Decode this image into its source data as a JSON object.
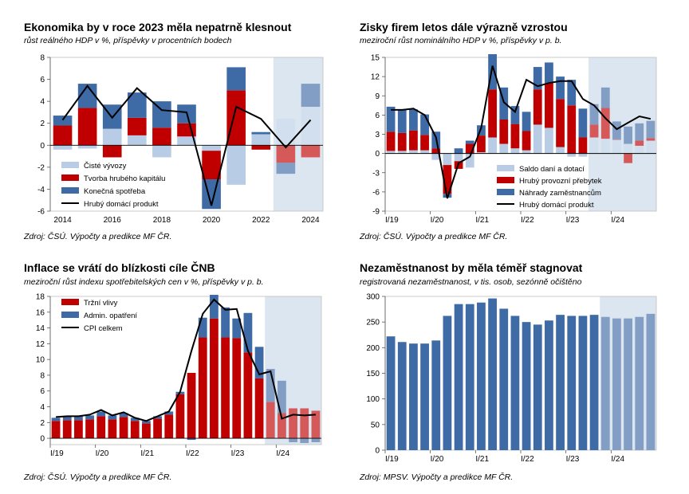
{
  "colors": {
    "forecast_bg": "#dce6f1",
    "dark_blue": "#3e6aa5",
    "light_blue": "#b8cde5",
    "red": "#c00000",
    "line": "#000000"
  },
  "charts": [
    {
      "title": "Ekonomika by v roce 2023 měla nepatrně klesnout",
      "subtitle": "růst reálného HDP v %, příspěvky v procentních bodech",
      "source": "Zdroj: ČSÚ. Výpočty a predikce MF ČR.",
      "chart_data": {
        "type": "bar",
        "stacked": true,
        "categories": [
          "2014",
          "2015",
          "2016",
          "2017",
          "2018",
          "2019",
          "2020",
          "2021",
          "2022",
          "2023",
          "2024"
        ],
        "x_tick_labels": [
          "2014",
          "2016",
          "2018",
          "2020",
          "2022",
          "2024"
        ],
        "ylim": [
          -6,
          8
        ],
        "yticks": [
          -6,
          -4,
          -2,
          0,
          2,
          4,
          6,
          8
        ],
        "forecast_from_index": 9,
        "legend_position": "bottom-left",
        "series": [
          {
            "name": "Čisté vývozy",
            "color": "#b8cde5",
            "values": [
              -0.4,
              -0.3,
              1.5,
              0.9,
              -1.1,
              0.8,
              -0.5,
              -3.6,
              1.0,
              2.4,
              3.5
            ]
          },
          {
            "name": "Tvorba hrubého kapitálu",
            "color": "#c00000",
            "values": [
              1.8,
              3.4,
              -1.1,
              1.6,
              1.6,
              1.2,
              -2.6,
              5.0,
              -0.4,
              -1.6,
              -1.1
            ]
          },
          {
            "name": "Konečná spotřeba",
            "color": "#3e6aa5",
            "values": [
              0.9,
              2.2,
              2.2,
              2.3,
              2.4,
              1.7,
              -2.7,
              2.1,
              0.2,
              -1.0,
              2.1
            ]
          }
        ],
        "line": {
          "name": "Hrubý domácí produkt",
          "values": [
            2.3,
            5.4,
            2.5,
            5.2,
            3.2,
            3.0,
            -5.5,
            3.5,
            2.4,
            -0.2,
            2.3
          ]
        }
      }
    },
    {
      "title": "Zisky firem letos dále výrazně vzrostou",
      "subtitle": "meziroční růst nominálního HDP v %, příspěvky v p. b.",
      "source": "Zdroj: ČSÚ. Výpočty a predikce MF ČR.",
      "chart_data": {
        "type": "bar",
        "stacked": true,
        "categories": [
          "I/19",
          "II/19",
          "III/19",
          "IV/19",
          "I/20",
          "II/20",
          "III/20",
          "IV/20",
          "I/21",
          "II/21",
          "III/21",
          "IV/21",
          "I/22",
          "II/22",
          "III/22",
          "IV/22",
          "I/23",
          "II/23",
          "III/23",
          "IV/23",
          "I/24",
          "II/24",
          "III/24",
          "IV/24"
        ],
        "x_tick_labels": [
          "I/19",
          "I/20",
          "I/21",
          "I/22",
          "I/23",
          "I/24"
        ],
        "ylim": [
          -9,
          15
        ],
        "yticks": [
          -9,
          -6,
          -3,
          0,
          3,
          6,
          9,
          12,
          15
        ],
        "forecast_from_index": 18,
        "legend_position": "bottom-right",
        "series": [
          {
            "name": "Saldo daní a dotací",
            "color": "#b8cde5",
            "values": [
              0.4,
              0.4,
              0.5,
              0.5,
              -1.0,
              -1.8,
              -1.2,
              -2.2,
              0.2,
              2.5,
              1.5,
              0.8,
              0.5,
              4.5,
              4.0,
              1.0,
              -0.5,
              -0.5,
              2.5,
              2.3,
              2.2,
              1.5,
              1.2,
              2.0
            ]
          },
          {
            "name": "Hrubý provozní přebytek",
            "color": "#c00000",
            "values": [
              3.0,
              2.8,
              3.1,
              2.4,
              0.8,
              -4.5,
              -1.2,
              1.5,
              2.6,
              7.5,
              3.8,
              3.8,
              3.0,
              5.5,
              7.0,
              7.5,
              7.5,
              2.5,
              2.0,
              4.8,
              0.0,
              -1.5,
              0.8,
              0.4
            ]
          },
          {
            "name": "Náhrady zaměstnancům",
            "color": "#3e6aa5",
            "values": [
              3.9,
              3.6,
              3.3,
              3.2,
              2.6,
              -0.6,
              0.8,
              0.5,
              1.6,
              5.5,
              5.0,
              2.8,
              3.0,
              3.5,
              3.2,
              3.5,
              4.0,
              4.5,
              3.2,
              3.2,
              2.8,
              2.7,
              2.7,
              2.7
            ]
          }
        ],
        "line": {
          "name": "Hrubý domácí produkt",
          "values": [
            6.8,
            6.8,
            7.0,
            6.0,
            2.5,
            -7.0,
            -1.5,
            -0.5,
            4.0,
            13.7,
            8.0,
            6.5,
            11.5,
            10.5,
            11.0,
            11.3,
            11.3,
            8.5,
            7.5,
            5.5,
            3.8,
            4.8,
            5.8,
            5.4
          ]
        }
      }
    },
    {
      "title": "Inflace se vrátí do blízkosti cíle ČNB",
      "subtitle": "meziroční růst indexu spotřebitelských cen v %, příspěvky v p. b.",
      "source": "Zdroj: ČSÚ. Výpočty a predikce MF ČR.",
      "chart_data": {
        "type": "bar",
        "stacked": true,
        "categories": [
          "I/19",
          "II/19",
          "III/19",
          "IV/19",
          "I/20",
          "II/20",
          "III/20",
          "IV/20",
          "I/21",
          "II/21",
          "III/21",
          "IV/21",
          "I/22",
          "II/22",
          "III/22",
          "IV/22",
          "I/23",
          "II/23",
          "III/23",
          "IV/23",
          "I/24",
          "II/24",
          "III/24",
          "IV/24"
        ],
        "x_tick_labels": [
          "I/19",
          "I/20",
          "I/21",
          "I/22",
          "I/23",
          "I/24"
        ],
        "ylim": [
          0,
          18
        ],
        "ymin_display": -0.8,
        "yticks": [
          0,
          2,
          4,
          6,
          8,
          10,
          12,
          14,
          16,
          18
        ],
        "forecast_from_index": 19,
        "legend_position": "top-left",
        "series": [
          {
            "name": "Tržní vlivy",
            "color": "#c00000",
            "values": [
              2.2,
              2.3,
              2.3,
              2.4,
              2.8,
              2.4,
              2.7,
              2.2,
              1.9,
              2.5,
              3.0,
              5.6,
              8.3,
              12.8,
              15.2,
              12.8,
              12.7,
              10.9,
              7.6,
              4.6,
              3.2,
              3.8,
              3.8,
              3.5
            ]
          },
          {
            "name": "Admin. opatření",
            "color": "#3e6aa5",
            "values": [
              0.4,
              0.5,
              0.5,
              0.5,
              0.6,
              0.5,
              0.5,
              0.4,
              0.3,
              0.3,
              0.4,
              0.3,
              -0.2,
              2.5,
              3.0,
              3.8,
              2.5,
              5.0,
              4.0,
              4.2,
              4.1,
              -0.5,
              -0.6,
              -0.5
            ]
          }
        ],
        "line": {
          "name": "CPI celkem",
          "values": [
            2.7,
            2.8,
            2.8,
            3.0,
            3.6,
            2.9,
            3.3,
            2.6,
            2.2,
            2.8,
            3.4,
            5.9,
            11.1,
            15.8,
            17.6,
            16.3,
            16.4,
            11.1,
            8.1,
            8.5,
            2.5,
            3.0,
            2.9,
            3.0
          ]
        }
      }
    },
    {
      "title": "Nezaměstnanost by měla téměř stagnovat",
      "subtitle": "registrovaná nezaměstnanost, v tis. osob, sezónně očištěno",
      "source": "Zdroj: MPSV. Výpočty a predikce MF ČR.",
      "chart_data": {
        "type": "bar",
        "categories": [
          "I/19",
          "II/19",
          "III/19",
          "IV/19",
          "I/20",
          "II/20",
          "III/20",
          "IV/20",
          "I/21",
          "II/21",
          "III/21",
          "IV/21",
          "I/22",
          "II/22",
          "III/22",
          "IV/22",
          "I/23",
          "II/23",
          "III/23",
          "IV/23",
          "I/24",
          "II/24",
          "III/24",
          "IV/24"
        ],
        "x_tick_labels": [
          "I/19",
          "I/20",
          "I/21",
          "I/22",
          "I/23",
          "I/24"
        ],
        "ylim": [
          0,
          300
        ],
        "yticks": [
          0,
          50,
          100,
          150,
          200,
          250,
          300
        ],
        "forecast_from_index": 19,
        "series": [
          {
            "color": "#3e6aa5",
            "values": [
              222,
              211,
              208,
              208,
              214,
              262,
              285,
              285,
              288,
              296,
              276,
              262,
              250,
              245,
              253,
              264,
              262,
              262,
              264,
              260,
              257,
              257,
              260,
              266
            ]
          }
        ]
      }
    }
  ]
}
